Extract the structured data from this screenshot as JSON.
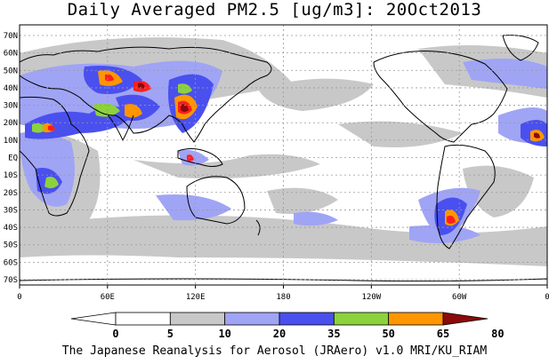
{
  "title": "Daily Averaged PM2.5 [ug/m3]: 20Oct2013",
  "footer": "The Japanese Reanalysis for Aerosol (JRAero) v1.0 MRI/KU_RIAM",
  "lat_ticks": [
    "70N",
    "60N",
    "50N",
    "40N",
    "30N",
    "20N",
    "10N",
    "EQ",
    "10S",
    "20S",
    "30S",
    "40S",
    "50S",
    "60S",
    "70S"
  ],
  "lon_ticks": [
    "0",
    "60E",
    "120E",
    "180",
    "120W",
    "60W",
    "0"
  ],
  "colorbar": {
    "labels": [
      "0",
      "5",
      "10",
      "20",
      "35",
      "50",
      "65",
      "80"
    ],
    "colors": [
      "#ffffff",
      "#c8c8c8",
      "#a0a4f5",
      "#4a50ee",
      "#8cd23c",
      "#ff9600",
      "#ff1e1e",
      "#8c0a0a"
    ]
  }
}
